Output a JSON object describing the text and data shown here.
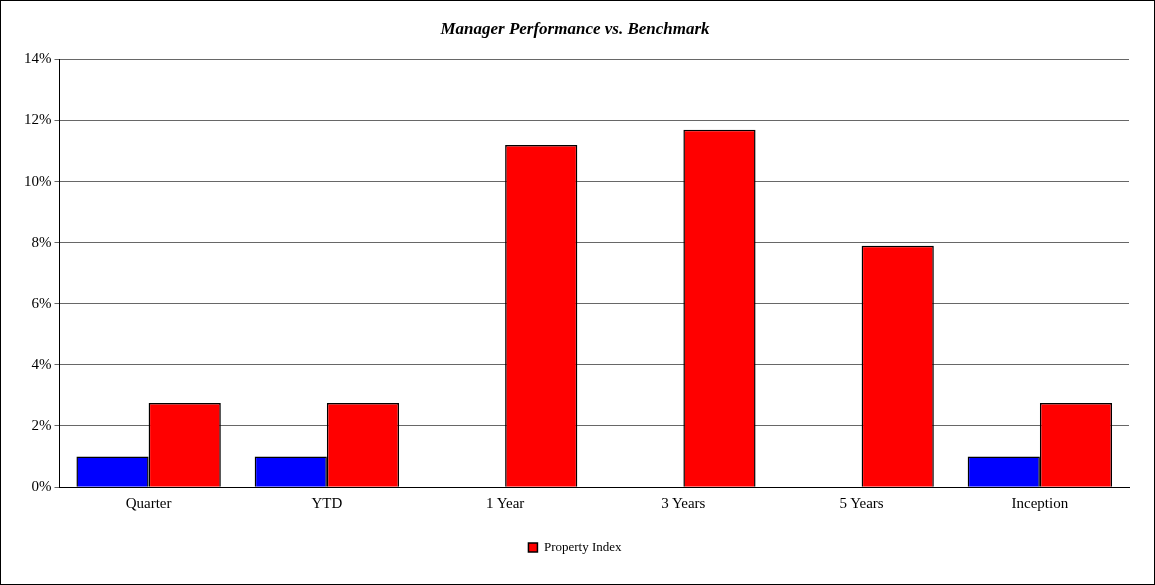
{
  "chart_data": {
    "type": "bar",
    "title": "Manager Performance vs. Benchmark",
    "categories": [
      "Quarter",
      "YTD",
      "1 Year",
      "3 Years",
      "5 Years",
      "Inception"
    ],
    "series": [
      {
        "color": "#0000ff",
        "values": [
          1.0,
          1.0,
          null,
          null,
          null,
          1.0
        ]
      },
      {
        "name": "Property Index",
        "color": "#ff0000",
        "values": [
          2.75,
          2.75,
          11.2,
          11.7,
          7.9,
          2.75
        ]
      }
    ],
    "ylim": [
      0,
      14
    ],
    "yticks": [
      {
        "value": 0,
        "label": "0%"
      },
      {
        "value": 2,
        "label": "2%"
      },
      {
        "value": 4,
        "label": "4%"
      },
      {
        "value": 6,
        "label": "6%"
      },
      {
        "value": 8,
        "label": "8%"
      },
      {
        "value": 10,
        "label": "10%"
      },
      {
        "value": 12,
        "label": "12%"
      },
      {
        "value": 14,
        "label": "14%"
      }
    ],
    "grid": "y",
    "legend": "bottom"
  }
}
